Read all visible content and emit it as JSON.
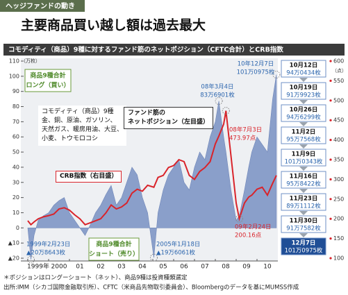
{
  "chart_data": {
    "type": "line-area",
    "kicker": "ヘッジファンドの動き",
    "title": "主要商品買い越し額は過去最大",
    "subtitle": "コモディティ（商品）9種に対するファンド筋のネットポジション（CFTC合計）とCRB指数",
    "ylabel": "（万枚）",
    "y2label": "（点）",
    "x": [
      1999.0,
      1999.15,
      1999.3,
      1999.5,
      1999.75,
      2000.0,
      2000.25,
      2000.5,
      2000.75,
      2001.0,
      2001.25,
      2001.5,
      2001.75,
      2002.0,
      2002.25,
      2002.5,
      2002.75,
      2003.0,
      2003.25,
      2003.5,
      2003.75,
      2004.0,
      2004.25,
      2004.5,
      2004.75,
      2005.05,
      2005.25,
      2005.5,
      2005.75,
      2006.0,
      2006.25,
      2006.5,
      2006.75,
      2007.0,
      2007.25,
      2007.5,
      2007.75,
      2008.0,
      2008.17,
      2008.4,
      2008.51,
      2008.75,
      2009.0,
      2009.15,
      2009.4,
      2009.6,
      2009.75,
      2010.0,
      2010.25,
      2010.5,
      2010.75,
      2010.93
    ],
    "series": [
      {
        "name": "ファンド筋の\nネットポジション（左目盛）",
        "color": "#8a9fca",
        "axis": "y",
        "values": [
          0,
          -20.8643,
          -5,
          5,
          8,
          10,
          15,
          18,
          20,
          10,
          5,
          0,
          -5,
          2,
          10,
          15,
          22,
          28,
          15,
          20,
          30,
          40,
          35,
          20,
          10,
          -19.6061,
          10,
          25,
          35,
          40,
          45,
          30,
          25,
          40,
          50,
          45,
          60,
          70,
          83.6901,
          60,
          50,
          25,
          5,
          8,
          25,
          40,
          50,
          60,
          55,
          50,
          85,
          101.0975
        ]
      },
      {
        "name": "CRB指数（右目盛）",
        "color": "#d9232a",
        "axis": "y2",
        "values": [
          195,
          185,
          192,
          200,
          205,
          208,
          212,
          225,
          228,
          222,
          210,
          200,
          185,
          190,
          195,
          200,
          215,
          235,
          225,
          230,
          240,
          265,
          275,
          270,
          285,
          280,
          305,
          310,
          330,
          335,
          350,
          345,
          310,
          300,
          320,
          330,
          345,
          390,
          410,
          440,
          473.97,
          360,
          240,
          200.16,
          240,
          255,
          260,
          275,
          280,
          260,
          290,
          310
        ]
      }
    ],
    "xlim": [
      1999,
      2011
    ],
    "xticks": [
      {
        "value": 1999,
        "label": "1999年"
      },
      2000,
      {
        "value": 2001,
        "label": "01"
      },
      {
        "value": 2002,
        "label": "02"
      },
      {
        "value": 2003,
        "label": "03"
      },
      {
        "value": 2004,
        "label": "04"
      },
      {
        "value": 2005,
        "label": "05"
      },
      {
        "value": 2006,
        "label": "06"
      },
      {
        "value": 2007,
        "label": "07"
      },
      {
        "value": 2008,
        "label": "08"
      },
      {
        "value": 2009,
        "label": "09"
      },
      {
        "value": 2010,
        "label": "10"
      }
    ],
    "ylim": [
      -20,
      110
    ],
    "yticks": [
      110,
      100,
      90,
      80,
      70,
      60,
      50,
      40,
      30,
      20,
      10,
      0,
      {
        "value": -10,
        "label": "▲10"
      },
      {
        "value": -20,
        "label": "▲20"
      }
    ],
    "y2lim": [
      100,
      600
    ],
    "y2ticks": [
      600,
      550,
      500,
      450,
      400,
      350,
      300,
      250,
      200,
      150,
      100
    ],
    "grid": false,
    "annotations": [
      {
        "series": 0,
        "index": 1,
        "lines": [
          "1999年2月23日",
          "▲20万8643枚"
        ]
      },
      {
        "series": 0,
        "index": 25,
        "lines": [
          "2005年1月18日",
          "▲19万6061枚"
        ]
      },
      {
        "series": 0,
        "index": 38,
        "lines": [
          "08年3月4日",
          "83万6901枚"
        ]
      },
      {
        "series": 1,
        "index": 40,
        "lines": [
          "08年7月3日",
          "473.97点"
        ]
      },
      {
        "series": 1,
        "index": 43,
        "lines": [
          "09年2月24日",
          "200.16点"
        ]
      },
      {
        "series": 0,
        "index": 51,
        "lines": [
          "10年12月7日",
          "101万0975枚"
        ]
      }
    ],
    "long_label": [
      "商品9種合計",
      "ロング（買い）"
    ],
    "short_label": [
      "商品9種合計",
      "ショート（売り）"
    ],
    "commodities": "コモディティ（商品）9種\n金、銅、原油、ガソリン、\n天然ガス、暖房用油、大豆、\n小麦、トウモロコシ",
    "weekly": [
      {
        "date": "10月12日",
        "value": "94万0434枚"
      },
      {
        "date": "10月19日",
        "value": "91万9923枚"
      },
      {
        "date": "10月26日",
        "value": "94万6299枚"
      },
      {
        "date": "11月2日",
        "value": "95万7568枚"
      },
      {
        "date": "11月9日",
        "value": "101万0343枚"
      },
      {
        "date": "11月16日",
        "value": "95万8422枚"
      },
      {
        "date": "11月23日",
        "value": "89万1112枚"
      },
      {
        "date": "11月30日",
        "value": "91万7582枚"
      },
      {
        "date": "12月7日",
        "value": "101万0975枚"
      }
    ],
    "notes": [
      "＊ポジションはロングーショート（ネット）、商品9種は投資種類選定",
      "出所:IMM（シカゴ国際金融取引所）、CFTC（米商品先物取引委員会）、Bloombergのデータを基にMUMSS作成"
    ]
  }
}
